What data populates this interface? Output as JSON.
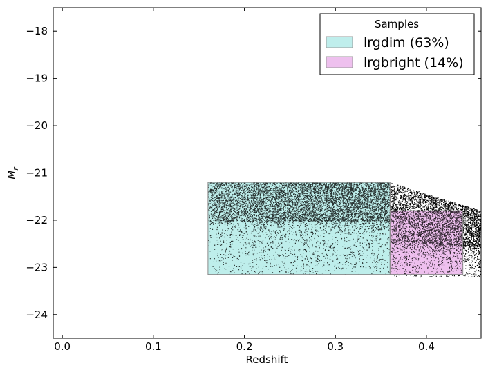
{
  "chart_data": {
    "type": "scatter",
    "title": "",
    "xlabel": "Redshift",
    "ylabel": "M",
    "ylabel_subscript": "r",
    "xlim": [
      -0.01,
      0.46
    ],
    "ylim": [
      -24.5,
      -17.5
    ],
    "y_inverted": true,
    "x_ticks": [
      0.0,
      0.1,
      0.2,
      0.3,
      0.4
    ],
    "x_tick_labels": [
      "0.0",
      "0.1",
      "0.2",
      "0.3",
      "0.4"
    ],
    "y_ticks": [
      -18,
      -19,
      -20,
      -21,
      -22,
      -23,
      -24
    ],
    "y_tick_labels": [
      "−18",
      "−19",
      "−20",
      "−21",
      "−22",
      "−23",
      "−24"
    ],
    "grid": false,
    "legend": {
      "title": "Samples",
      "placement": "top-right",
      "entries": [
        {
          "label": "lrgdim (63%)",
          "color": "#bfeeec"
        },
        {
          "label": "lrgbright (14%)",
          "color": "#eec0ee"
        }
      ]
    },
    "regions": [
      {
        "name": "lrgdim",
        "x_range": [
          0.16,
          0.36
        ],
        "y_range": [
          -23.15,
          -21.2
        ],
        "color": "#bfeeec"
      },
      {
        "name": "lrgbright",
        "x_range": [
          0.36,
          0.44
        ],
        "y_range": [
          -23.15,
          -21.8
        ],
        "color": "#eec0ee"
      }
    ],
    "point_cloud": {
      "color": "#000000",
      "marker_size": 0.7,
      "x_range": [
        0.16,
        0.46
      ],
      "bright_limit_mag": -21.2,
      "segments": [
        {
          "x_range": [
            0.16,
            0.36
          ],
          "dense_faint_limit": -22.0,
          "sparse_faint_limit": -23.15
        },
        {
          "x_range": [
            0.36,
            0.46
          ],
          "dense_faint_limit": -22.4,
          "sparse_faint_limit": -23.2
        }
      ]
    }
  }
}
